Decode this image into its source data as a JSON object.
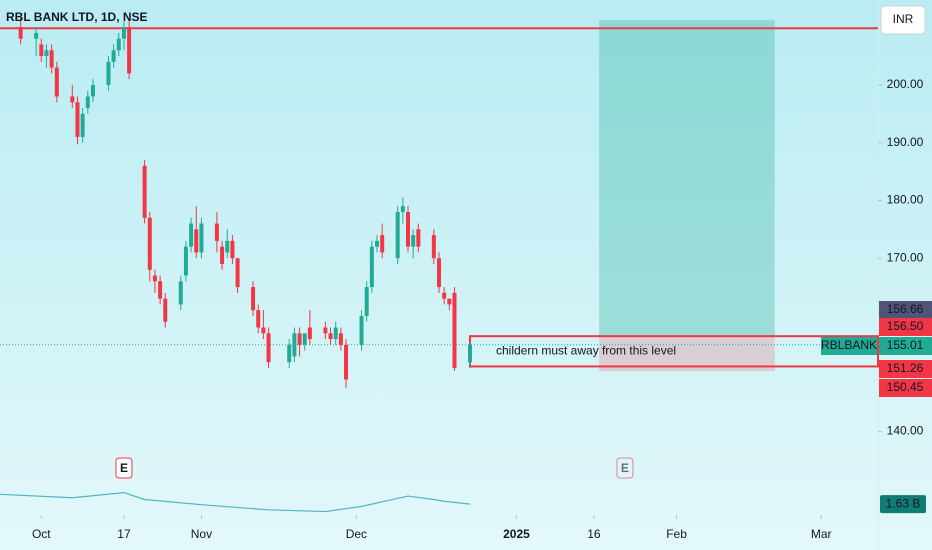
{
  "chart_data": {
    "type": "candlestick",
    "title": "RBL BANK LTD, 1D, NSE",
    "currency": "INR",
    "x": [
      "2024-09-27",
      "2024-09-30",
      "2024-10-01",
      "2024-10-02",
      "2024-10-03",
      "2024-10-04",
      "2024-10-07",
      "2024-10-08",
      "2024-10-09",
      "2024-10-10",
      "2024-10-11",
      "2024-10-14",
      "2024-10-15",
      "2024-10-16",
      "2024-10-17",
      "2024-10-18",
      "2024-10-21",
      "2024-10-22",
      "2024-10-23",
      "2024-10-24",
      "2024-10-25",
      "2024-10-28",
      "2024-10-29",
      "2024-10-30",
      "2024-10-31",
      "2024-11-01",
      "2024-11-04",
      "2024-11-05",
      "2024-11-06",
      "2024-11-07",
      "2024-11-08",
      "2024-11-11",
      "2024-11-12",
      "2024-11-13",
      "2024-11-14",
      "2024-11-18",
      "2024-11-19",
      "2024-11-20",
      "2024-11-21",
      "2024-11-22",
      "2024-11-25",
      "2024-11-26",
      "2024-11-27",
      "2024-11-28",
      "2024-11-29",
      "2024-12-02",
      "2024-12-03",
      "2024-12-04",
      "2024-12-05",
      "2024-12-06",
      "2024-12-09",
      "2024-12-10",
      "2024-12-11",
      "2024-12-12",
      "2024-12-13",
      "2024-12-16",
      "2024-12-17",
      "2024-12-18",
      "2024-12-19",
      "2024-12-20",
      "2024-12-23"
    ],
    "ohlc": [
      [
        210,
        212,
        207,
        208
      ],
      [
        208,
        210,
        205,
        209
      ],
      [
        207,
        208,
        204,
        205
      ],
      [
        205,
        207,
        203,
        206
      ],
      [
        206,
        207,
        202,
        203
      ],
      [
        203,
        204,
        197,
        198
      ],
      [
        198,
        200,
        196,
        197
      ],
      [
        197,
        198,
        189.7,
        191
      ],
      [
        191,
        196,
        190,
        195
      ],
      [
        196,
        199,
        195,
        198
      ],
      [
        198,
        201,
        197,
        200
      ],
      [
        200,
        205,
        199,
        204
      ],
      [
        204,
        207,
        203,
        206
      ],
      [
        206,
        209,
        205,
        208
      ],
      [
        208,
        211,
        206,
        210
      ],
      [
        210,
        211,
        201,
        202
      ],
      [
        186,
        187,
        176,
        177
      ],
      [
        177,
        178,
        166,
        168
      ],
      [
        167,
        168,
        164,
        166
      ],
      [
        166,
        167,
        162,
        163
      ],
      [
        163,
        164,
        158,
        159
      ],
      [
        162,
        167,
        161,
        166
      ],
      [
        167,
        173,
        166,
        172
      ],
      [
        172,
        177,
        171,
        176
      ],
      [
        175,
        179,
        170,
        171
      ],
      [
        171,
        177,
        170,
        176
      ],
      [
        176,
        178,
        171,
        173
      ],
      [
        172,
        173,
        168,
        169
      ],
      [
        171,
        175,
        170,
        173
      ],
      [
        173,
        174,
        169,
        170
      ],
      [
        170,
        170,
        164,
        165
      ],
      [
        165,
        166,
        160,
        161
      ],
      [
        161,
        162,
        157,
        158
      ],
      [
        158,
        161,
        156,
        157
      ],
      [
        157,
        158,
        151,
        152
      ],
      [
        152,
        156,
        151,
        155
      ],
      [
        153,
        158,
        152,
        157
      ],
      [
        157,
        158,
        153,
        155
      ],
      [
        155,
        157,
        154,
        157
      ],
      [
        158,
        161,
        155,
        156
      ],
      [
        158,
        159,
        156,
        157
      ],
      [
        157,
        158,
        155,
        156
      ],
      [
        156,
        159,
        155,
        158
      ],
      [
        157,
        158,
        154,
        155
      ],
      [
        155,
        156,
        147.5,
        149
      ],
      [
        155,
        161,
        154,
        160
      ],
      [
        160,
        166,
        159,
        165
      ],
      [
        165,
        173,
        164,
        172
      ],
      [
        172,
        174,
        171,
        173
      ],
      [
        174,
        176,
        170,
        171
      ],
      [
        170,
        179,
        169,
        178
      ],
      [
        178,
        180.5,
        176,
        179
      ],
      [
        178,
        179,
        171,
        172
      ],
      [
        172,
        175,
        170,
        174
      ],
      [
        175,
        176,
        171,
        172
      ],
      [
        174,
        175,
        169,
        170
      ],
      [
        170,
        171,
        164,
        165
      ],
      [
        164,
        165,
        162,
        163
      ],
      [
        163,
        163,
        161,
        162
      ],
      [
        164,
        165,
        150.5,
        151
      ],
      [
        152,
        155.5,
        151,
        155.01
      ]
    ],
    "up_color": "#22ab94",
    "down_color": "#f23645",
    "xlim": [
      "2024-09-23",
      "2025-03-12"
    ],
    "ylim": [
      131.6,
      214.7
    ],
    "yticks": [
      {
        "value": 200,
        "label": "200.00"
      },
      {
        "value": 190,
        "label": "190.00"
      },
      {
        "value": 180,
        "label": "180.00"
      },
      {
        "value": 170,
        "label": "170.00"
      },
      {
        "value": 140,
        "label": "140.00"
      }
    ],
    "xticks": [
      {
        "value": "2024-10-01",
        "label": "Oct"
      },
      {
        "value": "2024-10-17",
        "label": "17"
      },
      {
        "value": "2024-11-01",
        "label": "Nov"
      },
      {
        "value": "2024-12-01",
        "label": "Dec"
      },
      {
        "value": "2025-01-01",
        "label": "2025"
      },
      {
        "value": "2025-01-16",
        "label": "16"
      },
      {
        "value": "2025-02-01",
        "label": "Feb"
      },
      {
        "value": "2025-03-01",
        "label": "Mar"
      }
    ],
    "last_price": {
      "name": "RBLBANK",
      "value": 155.01
    },
    "level_line": {
      "value": 209.8,
      "color": "#f23645"
    },
    "annotation": {
      "text": "childern must away from this level",
      "from": "2024-12-23",
      "top": {
        "value": 156.5,
        "label": "156.50"
      },
      "bottom": 151.26,
      "color": "#f23645"
    },
    "position": {
      "from": "2025-01-17",
      "to": "2025-02-20",
      "target": 211.2,
      "entry": 156.66,
      "stop": 150.45
    },
    "events": [
      {
        "date": "2024-10-17",
        "label": "E"
      },
      {
        "date": "2025-01-22",
        "label": "E"
      }
    ],
    "indicator": {
      "x": [
        "2024-09-23",
        "2024-10-07",
        "2024-10-17",
        "2024-10-21",
        "2024-11-01",
        "2024-11-14",
        "2024-11-25",
        "2024-12-02",
        "2024-12-11",
        "2024-12-16",
        "2024-12-18",
        "2024-12-23"
      ],
      "values": [
        2.2,
        2.0,
        2.3,
        1.9,
        1.6,
        1.3,
        1.2,
        1.5,
        2.1,
        1.9,
        1.8,
        1.63
      ],
      "ylim": [
        1.0,
        2.8
      ],
      "last": {
        "value": 1.63,
        "label": "1.63 B"
      }
    }
  }
}
